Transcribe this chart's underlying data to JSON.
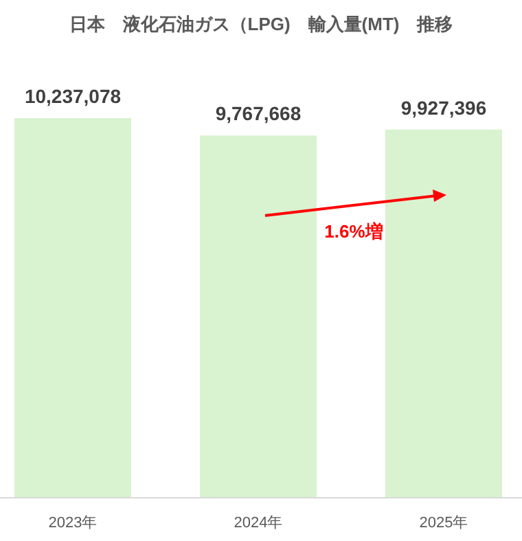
{
  "chart_data": {
    "type": "bar",
    "title": "日本　液化石油ガス（LPG)　輸入量(MT)　推移",
    "categories": [
      "2023年",
      "2024年",
      "2025年"
    ],
    "values": [
      10237078,
      9767668,
      9927396
    ],
    "value_labels": [
      "10,237,078",
      "9,767,668",
      "9,927,396"
    ],
    "color": "#d9f2d0",
    "tick_labels": "x",
    "annotations": [
      "1.6%増"
    ]
  }
}
